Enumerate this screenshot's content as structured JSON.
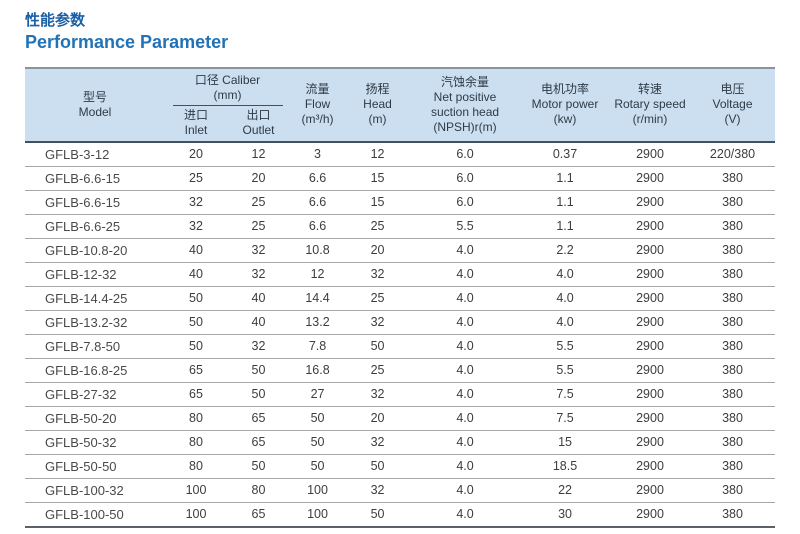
{
  "page": {
    "title_zh": "性能参数",
    "title_en": "Performance Parameter"
  },
  "colors": {
    "title_blue_zh": "#1b5fa7",
    "title_blue_en": "#2173b6",
    "header_bg": "#cbdff1",
    "header_border_top": "#8a949c",
    "header_border_bottom": "#44505c",
    "row_separator": "#a8a8a8",
    "table_bottom_border": "#5a6168",
    "cell_text": "#3d3d3d"
  },
  "table": {
    "header": {
      "model": {
        "zh": "型号",
        "en": "Model"
      },
      "caliber_group": {
        "label": "口径 Caliber",
        "unit": "(mm)"
      },
      "inlet": {
        "zh": "进口",
        "en": "Inlet"
      },
      "outlet": {
        "zh": "出口",
        "en": "Outlet"
      },
      "flow": {
        "zh": "流量",
        "en": "Flow",
        "unit": "(m³/h)"
      },
      "head": {
        "zh": "扬程",
        "en": "Head",
        "unit": "(m)"
      },
      "npsh": {
        "zh": "汽蚀余量",
        "en1": "Net positive",
        "en2": "suction head",
        "unit": "(NPSH)r(m)"
      },
      "motor_power": {
        "zh": "电机功率",
        "en": "Motor power",
        "unit": "(kw)"
      },
      "rotary_speed": {
        "zh": "转速",
        "en": "Rotary speed",
        "unit": "(r/min)"
      },
      "voltage": {
        "zh": "电压",
        "en": "Voltage",
        "unit": "(V)"
      }
    },
    "rows": [
      [
        "GFLB-3-12",
        "20",
        "12",
        "3",
        "12",
        "6.0",
        "0.37",
        "2900",
        "220/380"
      ],
      [
        "GFLB-6.6-15",
        "25",
        "20",
        "6.6",
        "15",
        "6.0",
        "1.1",
        "2900",
        "380"
      ],
      [
        "GFLB-6.6-15",
        "32",
        "25",
        "6.6",
        "15",
        "6.0",
        "1.1",
        "2900",
        "380"
      ],
      [
        "GFLB-6.6-25",
        "32",
        "25",
        "6.6",
        "25",
        "5.5",
        "1.1",
        "2900",
        "380"
      ],
      [
        "GFLB-10.8-20",
        "40",
        "32",
        "10.8",
        "20",
        "4.0",
        "2.2",
        "2900",
        "380"
      ],
      [
        "GFLB-12-32",
        "40",
        "32",
        "12",
        "32",
        "4.0",
        "4.0",
        "2900",
        "380"
      ],
      [
        "GFLB-14.4-25",
        "50",
        "40",
        "14.4",
        "25",
        "4.0",
        "4.0",
        "2900",
        "380"
      ],
      [
        "GFLB-13.2-32",
        "50",
        "40",
        "13.2",
        "32",
        "4.0",
        "4.0",
        "2900",
        "380"
      ],
      [
        "GFLB-7.8-50",
        "50",
        "32",
        "7.8",
        "50",
        "4.0",
        "5.5",
        "2900",
        "380"
      ],
      [
        "GFLB-16.8-25",
        "65",
        "50",
        "16.8",
        "25",
        "4.0",
        "5.5",
        "2900",
        "380"
      ],
      [
        "GFLB-27-32",
        "65",
        "50",
        "27",
        "32",
        "4.0",
        "7.5",
        "2900",
        "380"
      ],
      [
        "GFLB-50-20",
        "80",
        "65",
        "50",
        "20",
        "4.0",
        "7.5",
        "2900",
        "380"
      ],
      [
        "GFLB-50-32",
        "80",
        "65",
        "50",
        "32",
        "4.0",
        "15",
        "2900",
        "380"
      ],
      [
        "GFLB-50-50",
        "80",
        "50",
        "50",
        "50",
        "4.0",
        "18.5",
        "2900",
        "380"
      ],
      [
        "GFLB-100-32",
        "100",
        "80",
        "100",
        "32",
        "4.0",
        "22",
        "2900",
        "380"
      ],
      [
        "GFLB-100-50",
        "100",
        "65",
        "100",
        "50",
        "4.0",
        "30",
        "2900",
        "380"
      ]
    ]
  }
}
